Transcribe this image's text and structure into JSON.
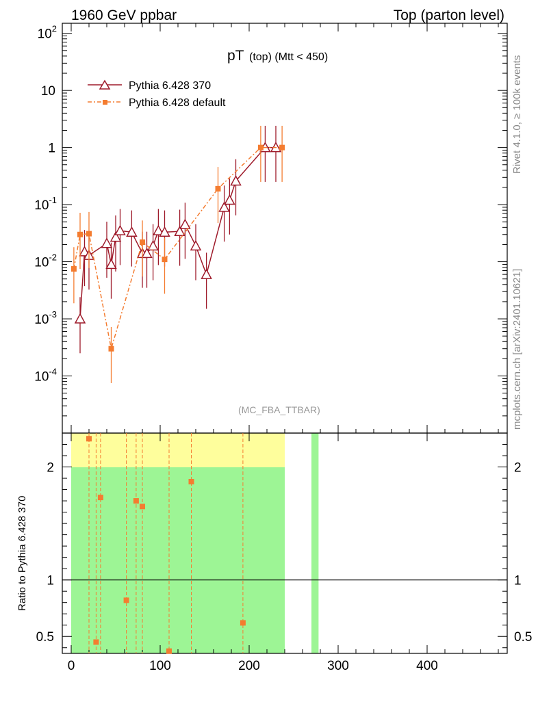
{
  "header": {
    "left": "1960 GeV ppbar",
    "right": "Top (parton level)"
  },
  "side_labels": {
    "rivet": "Rivet 4.1.0, ≥ 100k events",
    "mcplots": "mcplots.cern.ch [arXiv:2401.10621]"
  },
  "watermark": "(MC_FBA_TTBAR)",
  "chart_data": {
    "type": "line",
    "title": "pT (top) (Mtt < 450)",
    "title_main": "pT",
    "title_sub": "(top) (Mtt < 450)",
    "upper": {
      "yscale": "log",
      "ylim": [
        1e-05,
        150
      ],
      "ytick_values": [
        0.0001,
        0.001,
        0.01,
        0.1,
        1,
        10,
        100
      ],
      "ytick_labels": [
        "10^-4",
        "10^-3",
        "10^-2",
        "10^-1",
        "1",
        "10",
        "10^2"
      ]
    },
    "lower": {
      "ylabel": "Ratio to Pythia 6.428 370",
      "ylim": [
        0.35,
        2.3
      ],
      "ytick_values": [
        0.5,
        1,
        2
      ],
      "ytick_labels": [
        "0.5",
        "1",
        "2"
      ]
    },
    "x": {
      "xlim": [
        -10,
        490
      ],
      "tick_values": [
        0,
        100,
        200,
        300,
        400
      ],
      "tick_labels": [
        "0",
        "100",
        "200",
        "300",
        "400"
      ]
    },
    "legend": {
      "placement": "top-left",
      "entries": [
        "Pythia 6.428 370",
        "Pythia 6.428 default"
      ]
    },
    "series": [
      {
        "name": "Pythia 6.428 370",
        "color": "#9e1a2a",
        "marker": "triangle-open",
        "points": [
          [
            10,
            0.001
          ],
          [
            15,
            0.015
          ],
          [
            20,
            0.013
          ],
          [
            40,
            0.021
          ],
          [
            45,
            0.009
          ],
          [
            50,
            0.027
          ],
          [
            55,
            0.035
          ],
          [
            68,
            0.033
          ],
          [
            80,
            0.014
          ],
          [
            85,
            0.014
          ],
          [
            92,
            0.019
          ],
          [
            98,
            0.035
          ],
          [
            105,
            0.033
          ],
          [
            122,
            0.034
          ],
          [
            128,
            0.045
          ],
          [
            140,
            0.019
          ],
          [
            152,
            0.006
          ],
          [
            172,
            0.09
          ],
          [
            178,
            0.12
          ],
          [
            185,
            0.26
          ],
          [
            218,
            1.0
          ],
          [
            230,
            1.0
          ]
        ]
      },
      {
        "name": "Pythia 6.428 default",
        "color": "#f47c30",
        "marker": "square-filled",
        "points": [
          [
            3,
            0.0075
          ],
          [
            10,
            0.03
          ],
          [
            20,
            0.031
          ],
          [
            45,
            0.0003
          ],
          [
            80,
            0.022
          ],
          [
            105,
            0.011
          ],
          [
            165,
            0.19
          ],
          [
            213,
            1.0
          ],
          [
            237,
            1.0
          ]
        ]
      }
    ],
    "ratio_points": [
      [
        20,
        2.25
      ],
      [
        28,
        0.45
      ],
      [
        33,
        1.73
      ],
      [
        62,
        0.82
      ],
      [
        73,
        1.7
      ],
      [
        80,
        1.65
      ],
      [
        110,
        0.37
      ],
      [
        135,
        1.87
      ],
      [
        193,
        0.62
      ]
    ],
    "ratio_band": {
      "green_color": "#9df595",
      "yellow_color": "#fefe9c"
    }
  }
}
